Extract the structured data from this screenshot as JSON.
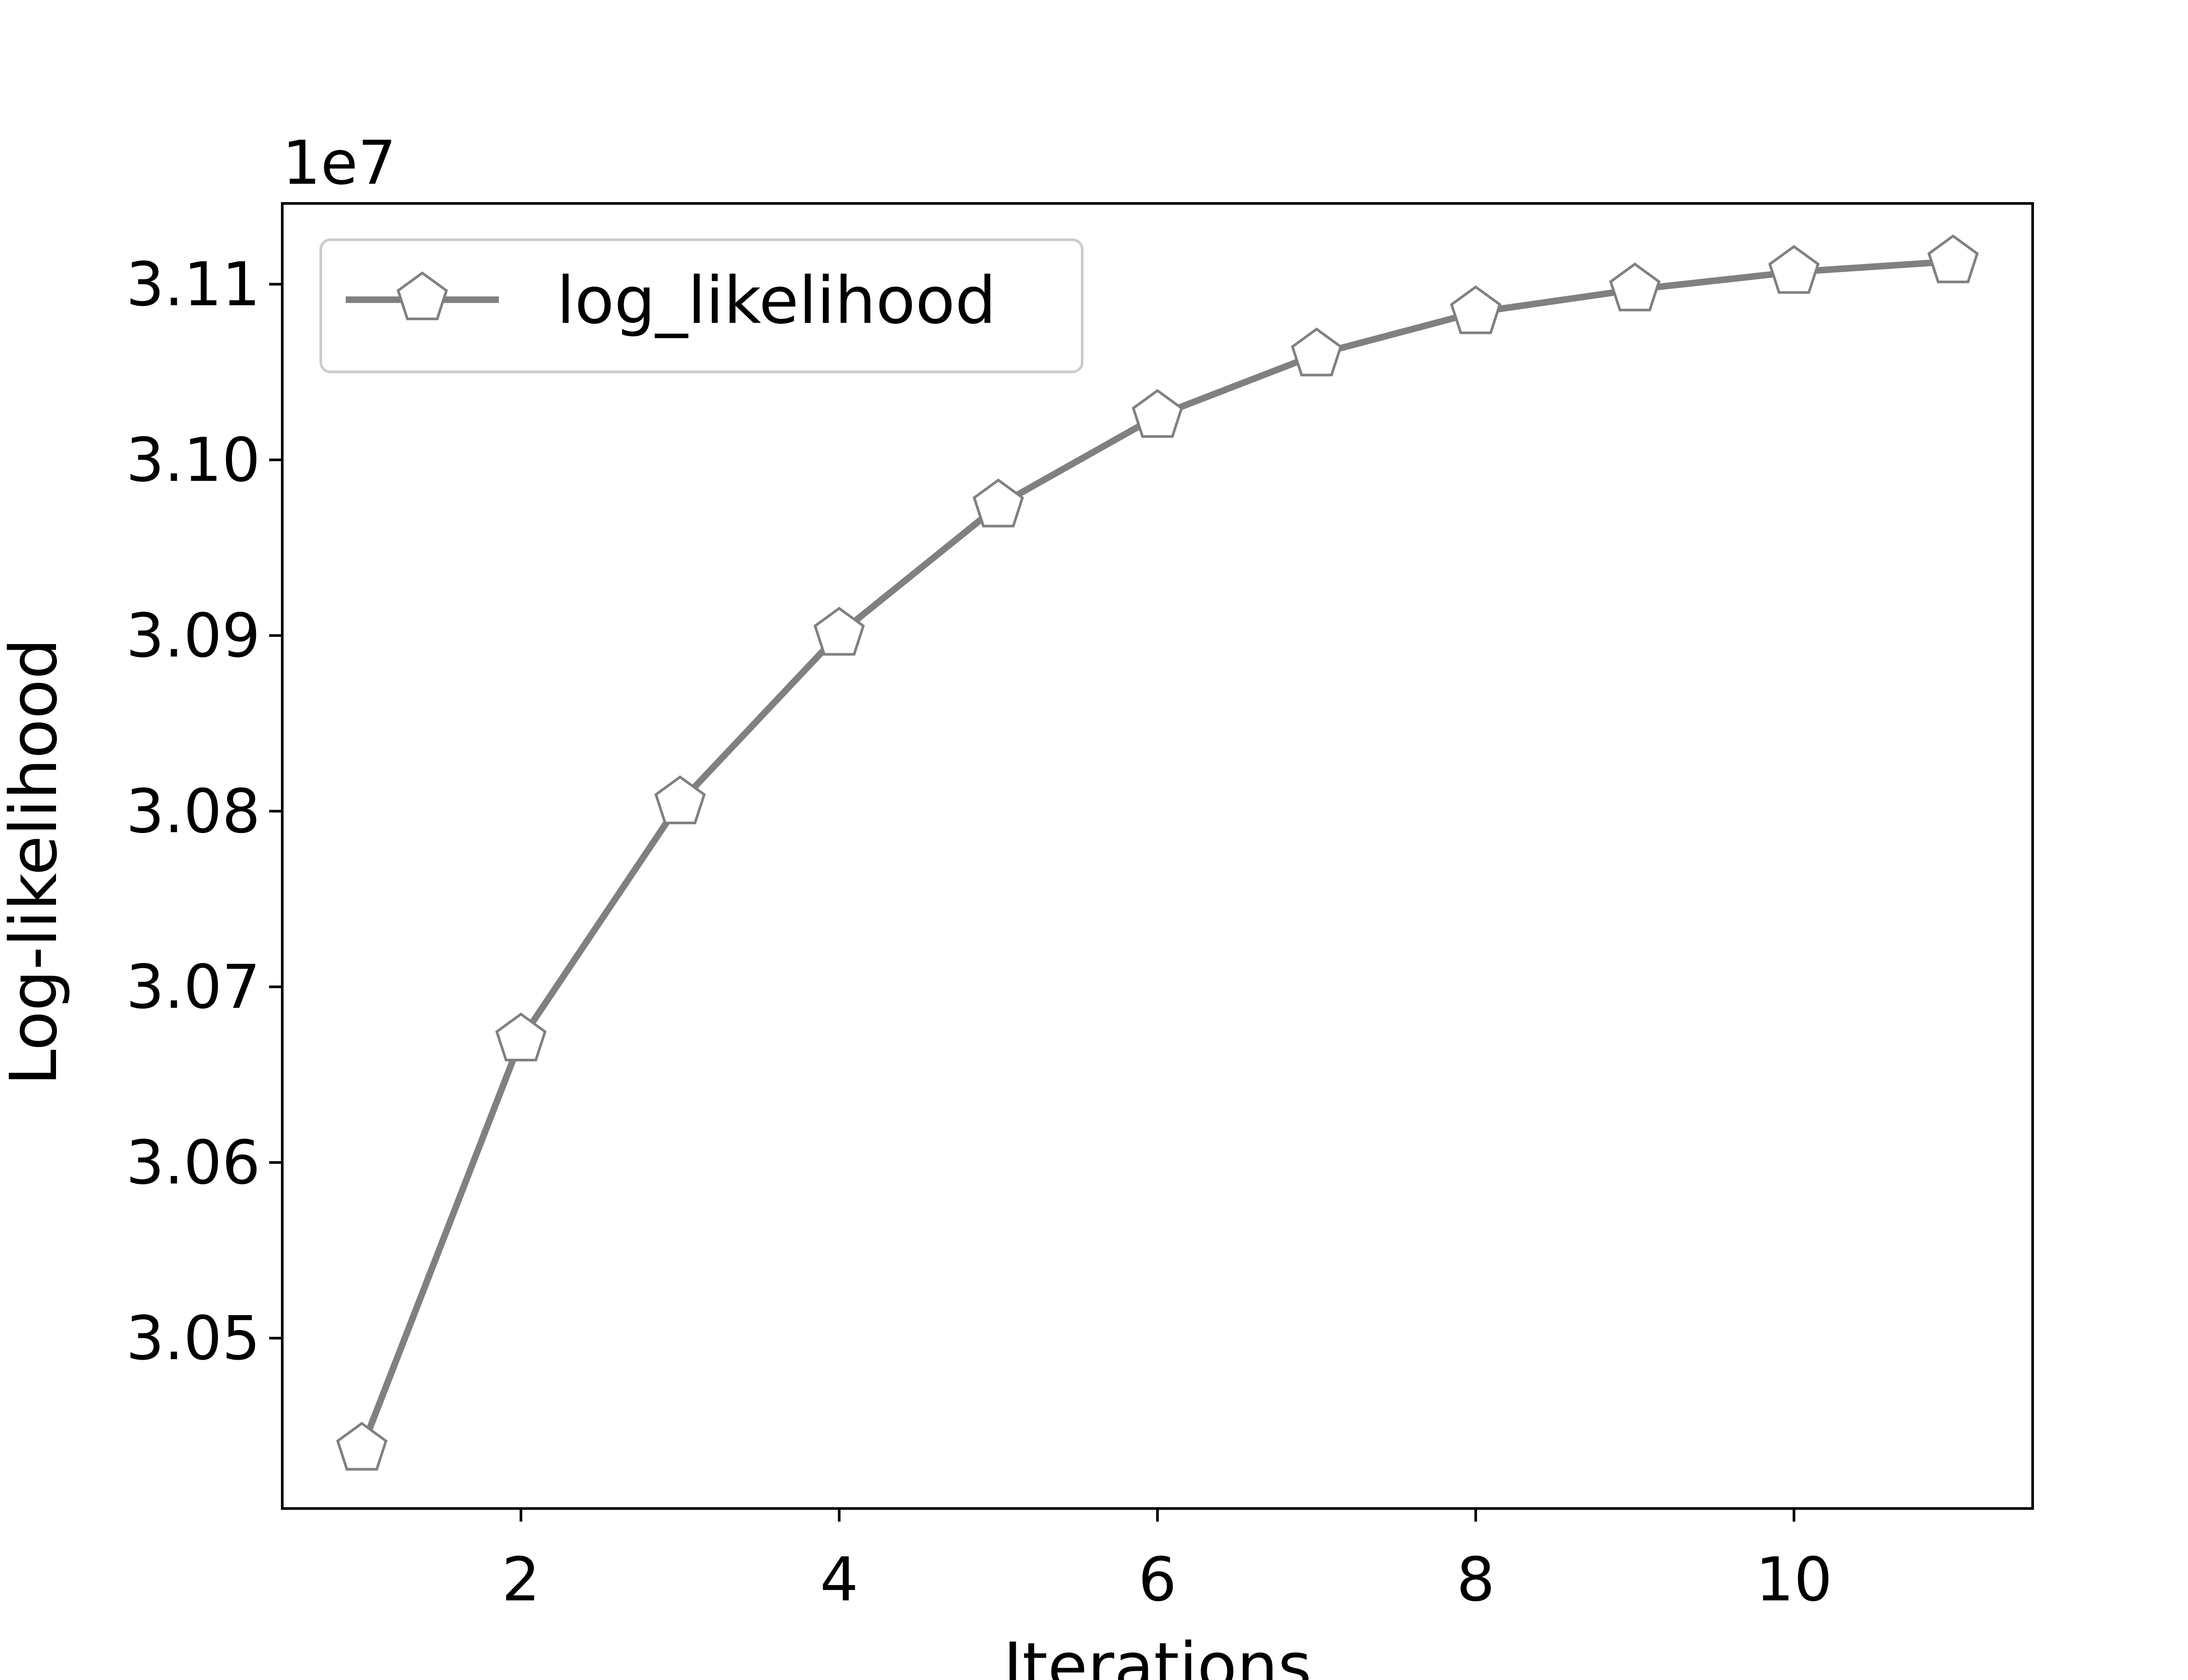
{
  "chart_data": {
    "type": "line",
    "xlabel": "Iterations",
    "ylabel": "Log-likelihood",
    "y_offset_label": "1e7",
    "xlim": [
      0.5,
      11.5
    ],
    "ylim": [
      3.0403,
      3.1146
    ],
    "x_ticks": [
      2,
      4,
      6,
      8,
      10
    ],
    "x_tick_labels": [
      "2",
      "4",
      "6",
      "8",
      "10"
    ],
    "y_ticks": [
      3.05,
      3.06,
      3.07,
      3.08,
      3.09,
      3.1,
      3.11
    ],
    "y_tick_labels": [
      "3.05",
      "3.06",
      "3.07",
      "3.08",
      "3.09",
      "3.10",
      "3.11"
    ],
    "grid": false,
    "legend_position": "top-left",
    "marker": "pentagon",
    "series": [
      {
        "name": "log_likelihood",
        "color": "#808080",
        "x": [
          1,
          2,
          3,
          4,
          5,
          6,
          7,
          8,
          9,
          10,
          11
        ],
        "y": [
          3.0437,
          3.067,
          3.0805,
          3.0901,
          3.0974,
          3.1025,
          3.106,
          3.1084,
          3.1097,
          3.1107,
          3.1113
        ]
      }
    ]
  }
}
